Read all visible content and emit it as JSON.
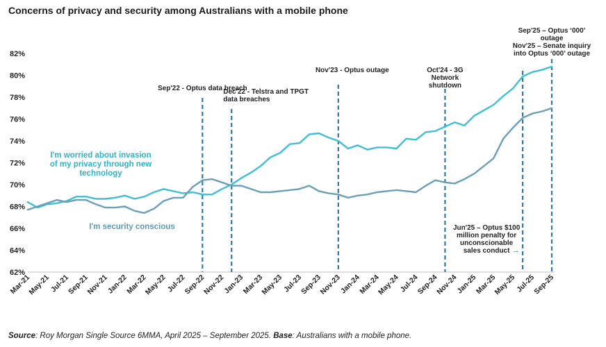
{
  "title": "Concerns of privacy and security among Australians with a mobile phone",
  "source": {
    "label": "Source",
    "text": ": Roy Morgan Single Source 6MMA, April 2025 – September 2025. ",
    "base_label": "Base",
    "base_text": ": Australians with a mobile phone."
  },
  "colors": {
    "privacy": "#3fbfd3",
    "security": "#6a9fb8",
    "event_line": "#2f78a6",
    "privacy_label": "#2bb3c8",
    "security_label": "#5f9ab5"
  },
  "chart_data": {
    "type": "line",
    "x": [
      "Mar-21",
      "Apr-21",
      "May-21",
      "Jun-21",
      "Jul-21",
      "Aug-21",
      "Sep-21",
      "Oct-21",
      "Nov-21",
      "Dec-21",
      "Jan-22",
      "Feb-22",
      "Mar-22",
      "Apr-22",
      "May-22",
      "Jun-22",
      "Jul-22",
      "Aug-22",
      "Sep-22",
      "Oct-22",
      "Nov-22",
      "Dec-22",
      "Jan-23",
      "Feb-23",
      "Mar-23",
      "Apr-23",
      "May-23",
      "Jun-23",
      "Jul-23",
      "Aug-23",
      "Sep-23",
      "Oct-23",
      "Nov-23",
      "Dec-23",
      "Jan-24",
      "Feb-24",
      "Mar-24",
      "Apr-24",
      "May-24",
      "Jun-24",
      "Jul-24",
      "Aug-24",
      "Sep-24",
      "Oct-24",
      "Nov-24",
      "Dec-24",
      "Jan-25",
      "Feb-25",
      "Mar-25",
      "Apr-25",
      "May-25",
      "Jun-25",
      "Jul-25",
      "Aug-25",
      "Sep-25"
    ],
    "x_tick_labels": [
      "Mar-21",
      "May-21",
      "Jul-21",
      "Sep-21",
      "Nov-21",
      "Jan-22",
      "Mar-22",
      "May-22",
      "Jul-22",
      "Sep-22",
      "Nov-22",
      "Jan-23",
      "Mar-23",
      "May-23",
      "Jul-23",
      "Sep-23",
      "Nov-23",
      "Jan-24",
      "Mar-24",
      "May-24",
      "Jul-24",
      "Sep-24",
      "Nov-24",
      "Jan-25",
      "Mar-25",
      "May-25",
      "Jul-25",
      "Sep-25"
    ],
    "y_ticks": [
      "62%",
      "64%",
      "66%",
      "68%",
      "70%",
      "72%",
      "74%",
      "76%",
      "78%",
      "80%",
      "82%"
    ],
    "ylim": [
      62,
      82
    ],
    "series": [
      {
        "name": "I'm worried about invasion of my privacy through new technology",
        "values": [
          68.4,
          67.9,
          68.2,
          68.3,
          68.5,
          68.9,
          68.9,
          68.7,
          68.7,
          68.8,
          69.0,
          68.7,
          68.9,
          69.3,
          69.6,
          69.4,
          69.2,
          69.3,
          69.1,
          69.1,
          69.6,
          70.0,
          70.6,
          71.1,
          71.7,
          72.5,
          72.9,
          73.7,
          73.8,
          74.6,
          74.7,
          74.3,
          74.0,
          73.3,
          73.6,
          73.2,
          73.4,
          73.4,
          73.3,
          74.2,
          74.1,
          74.8,
          74.9,
          75.3,
          75.7,
          75.4,
          76.3,
          76.8,
          77.3,
          78.1,
          78.8,
          79.9,
          80.3,
          80.5,
          80.8
        ]
      },
      {
        "name": "I'm security conscious",
        "values": [
          67.7,
          68.0,
          68.3,
          68.6,
          68.4,
          68.6,
          68.6,
          68.2,
          67.9,
          67.9,
          68.0,
          67.6,
          67.4,
          67.8,
          68.5,
          68.8,
          68.8,
          69.8,
          70.4,
          70.5,
          70.2,
          69.9,
          69.9,
          69.6,
          69.3,
          69.3,
          69.4,
          69.5,
          69.6,
          69.9,
          69.4,
          69.2,
          69.1,
          68.8,
          69.0,
          69.1,
          69.3,
          69.4,
          69.5,
          69.4,
          69.3,
          69.9,
          70.4,
          70.2,
          70.1,
          70.5,
          71.0,
          71.7,
          72.4,
          74.2,
          75.2,
          76.1,
          76.5,
          76.7,
          77.0
        ]
      }
    ],
    "series_labels": [
      {
        "series": 0,
        "lines": [
          "I'm worried about invasion",
          "of my privacy through new",
          "technology"
        ]
      },
      {
        "series": 1,
        "lines": [
          "I'm security conscious"
        ]
      }
    ],
    "events": [
      {
        "at": "Sep-22",
        "lines": [
          "Sep'22 - Optus data breach"
        ]
      },
      {
        "at": "Dec-22",
        "lines": [
          "Dec'22 - Telstra and TPGT",
          "data breaches"
        ]
      },
      {
        "at": "Nov-23",
        "lines": [
          "Nov'23 - Optus outage"
        ]
      },
      {
        "at": "Oct-24",
        "lines": [
          "Oct'24 - 3G",
          "Network",
          "shutdown"
        ]
      },
      {
        "at": "Jun-25",
        "lines": [
          "Jun'25 – Optus $100",
          "million penalty for",
          "unconscionable",
          "sales conduct"
        ],
        "arrow": "→"
      },
      {
        "at": "Sep-25",
        "lines": [
          "Sep'25 – Optus ‘000’",
          "outage",
          "Nov'25 – Senate inquiry",
          "into Optus ‘000’ outage"
        ]
      }
    ],
    "grid": false,
    "legend": "none"
  }
}
